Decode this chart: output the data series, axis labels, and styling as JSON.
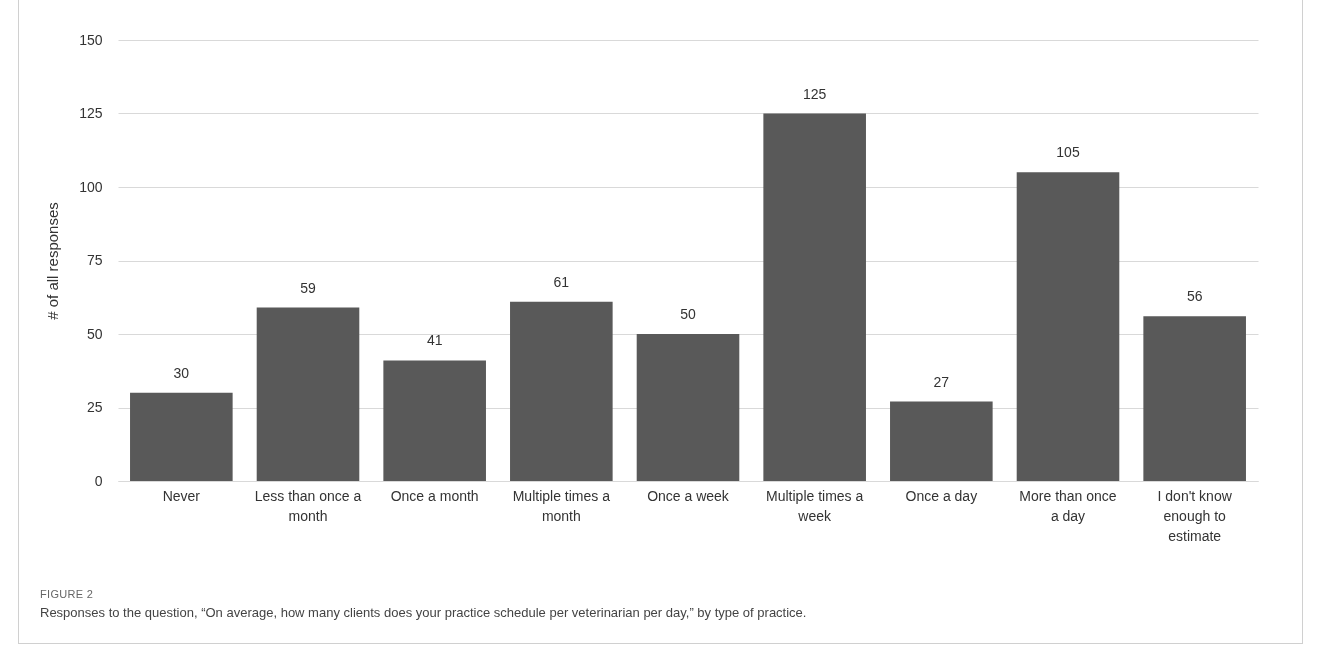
{
  "chart_data": {
    "type": "bar",
    "ylabel": "# of all responses",
    "categories": [
      "Never",
      "Less than once a month",
      "Once a month",
      "Multiple times a month",
      "Once a week",
      "Multiple times a week",
      "Once a day",
      "More than once a day",
      "I don't know enough to estimate"
    ],
    "values": [
      30,
      59,
      41,
      61,
      50,
      125,
      27,
      105,
      56
    ],
    "color": "#595959",
    "ylim": [
      0,
      150
    ],
    "yticks": [
      0,
      25,
      50,
      75,
      100,
      125,
      150
    ],
    "grid": "y",
    "data_labels": true,
    "annotations": [
      "FIGURE 2",
      "Responses to the question, “On average, how many clients does your practice schedule per veterinarian per day,” by type of practice."
    ]
  }
}
